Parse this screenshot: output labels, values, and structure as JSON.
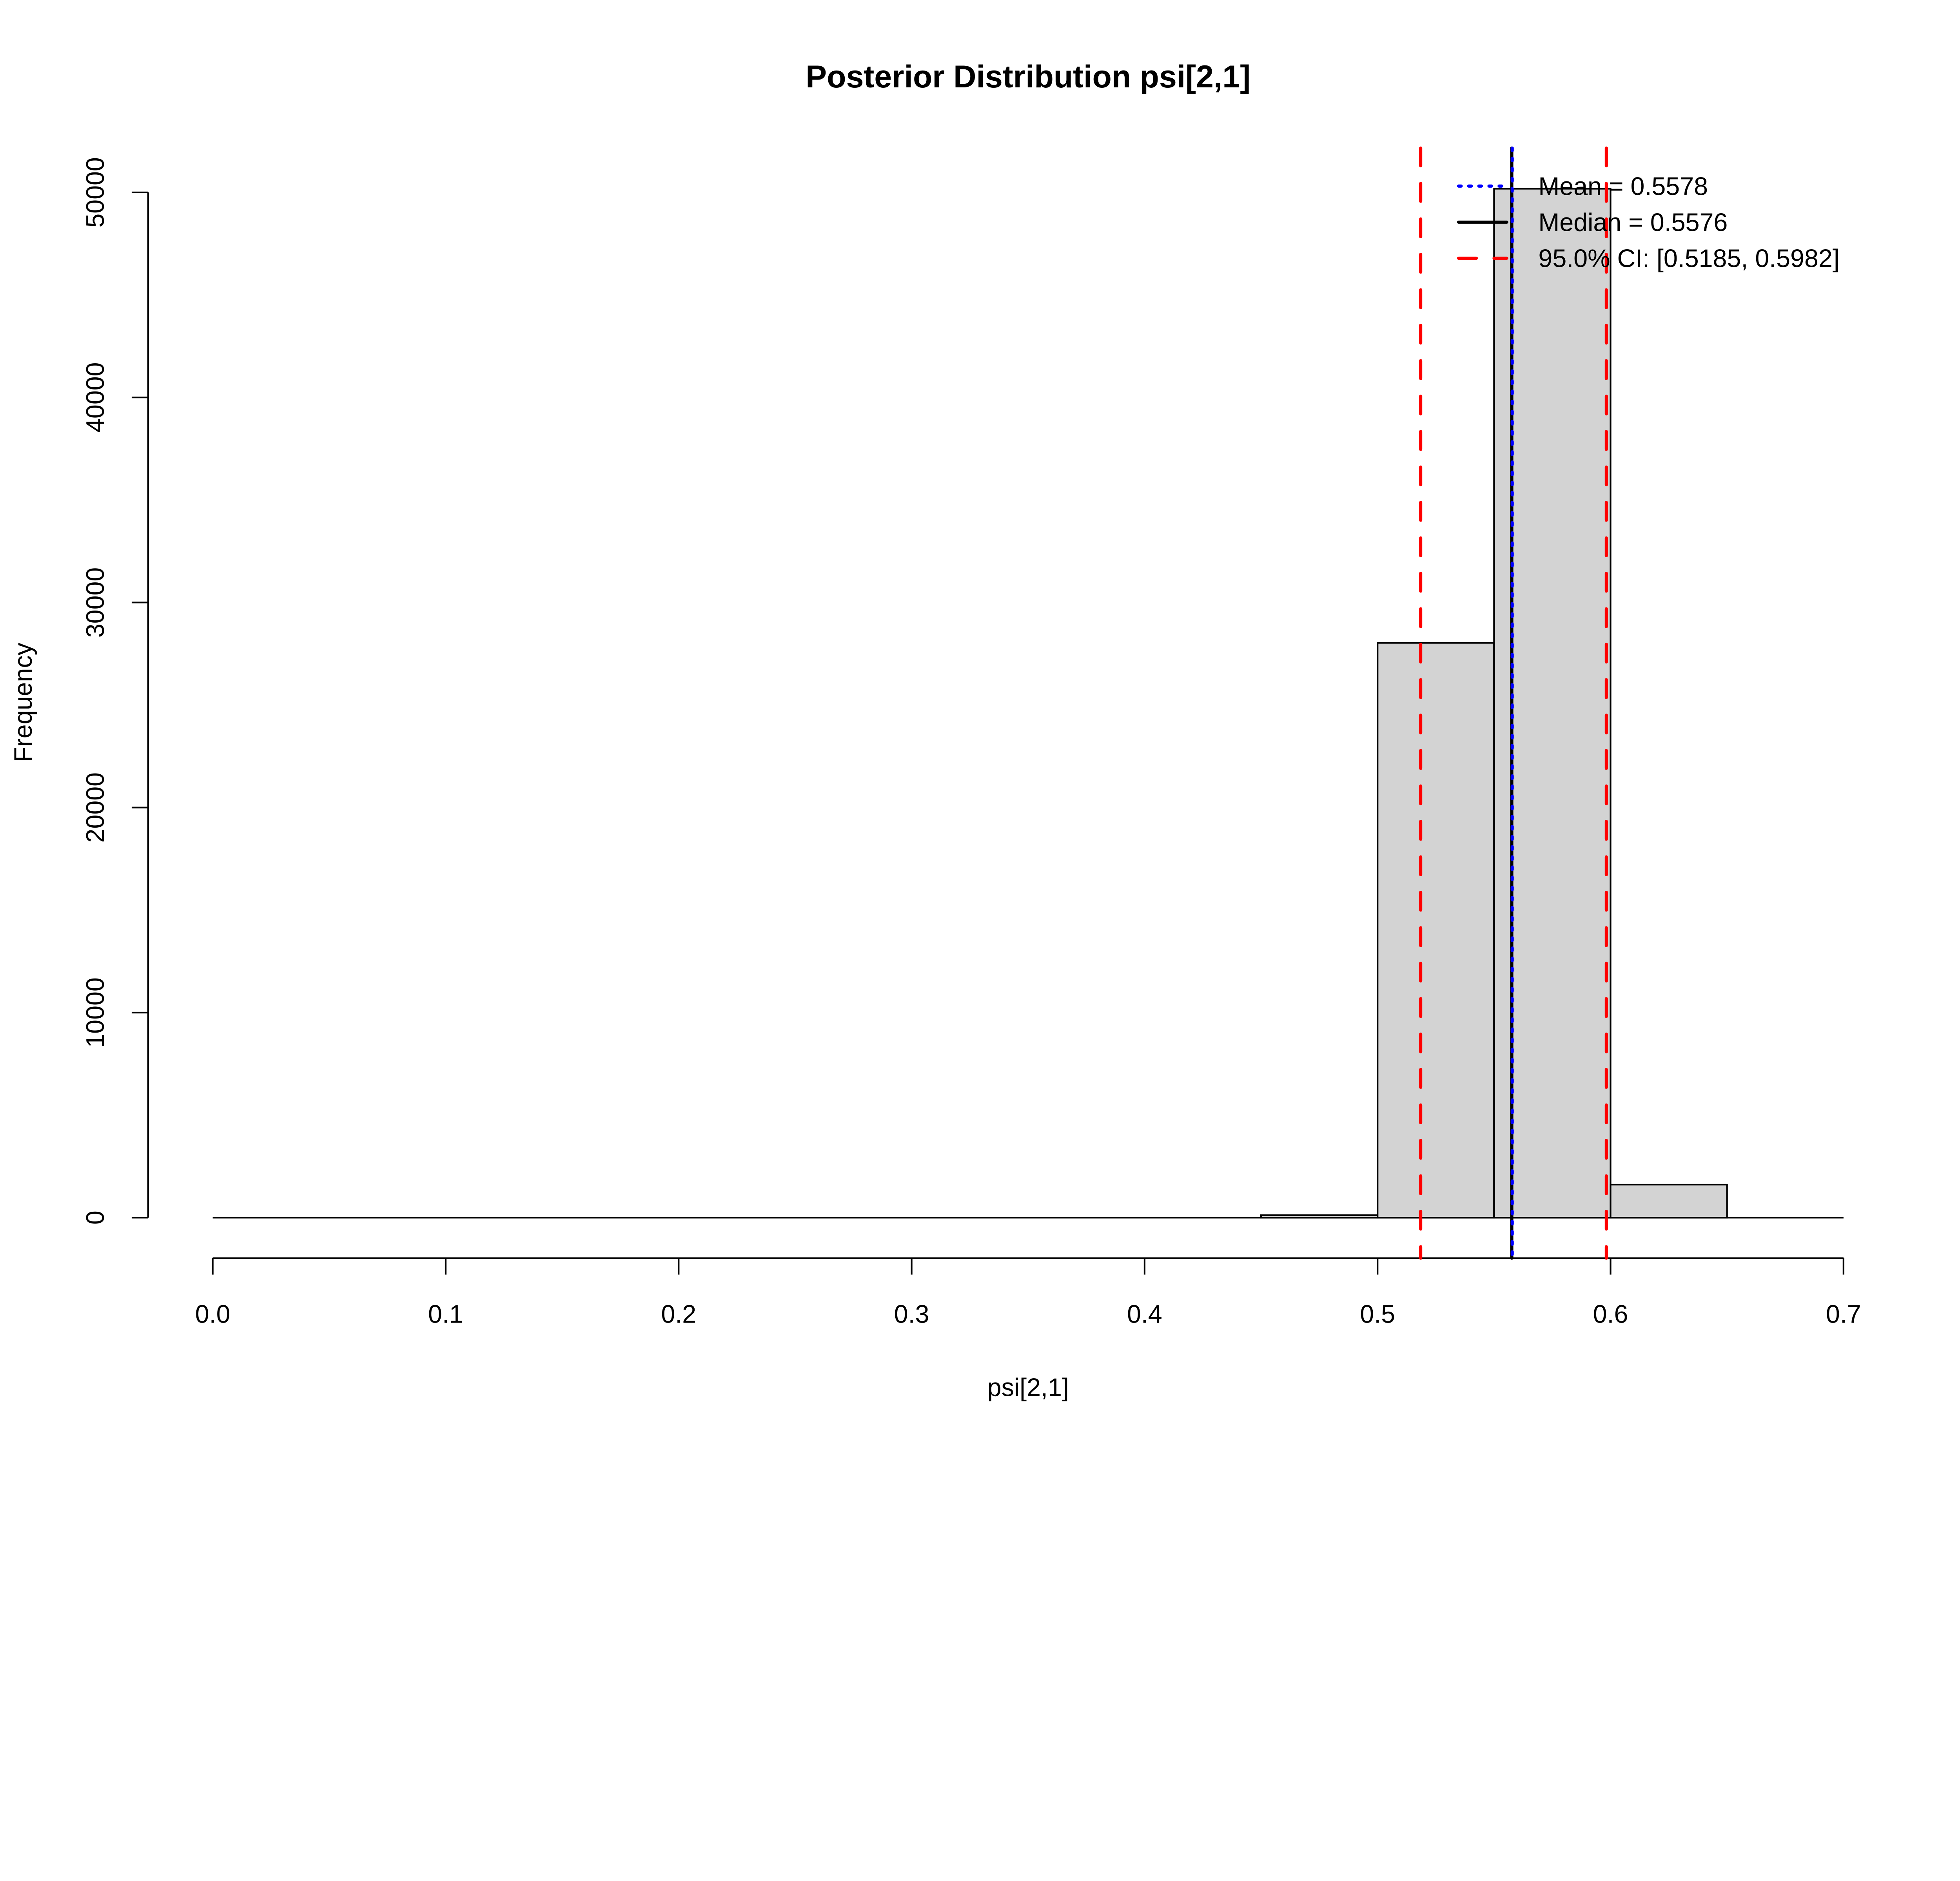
{
  "chart_data": {
    "type": "bar",
    "title": "Posterior Distribution psi[2,1]",
    "xlabel": "psi[2,1]",
    "ylabel": "Frequency",
    "xlim": [
      0.0,
      0.7
    ],
    "ylim": [
      0,
      50000
    ],
    "xticks": [
      "0.0",
      "0.1",
      "0.2",
      "0.3",
      "0.4",
      "0.5",
      "0.6",
      "0.7"
    ],
    "yticks": [
      "0",
      "10000",
      "20000",
      "30000",
      "40000",
      "50000"
    ],
    "bins": [
      {
        "from": 0.45,
        "to": 0.5,
        "count": 120
      },
      {
        "from": 0.5,
        "to": 0.55,
        "count": 28030
      },
      {
        "from": 0.55,
        "to": 0.6,
        "count": 50180
      },
      {
        "from": 0.6,
        "to": 0.65,
        "count": 1610
      }
    ],
    "bar_color": "#d3d3d3",
    "lines": [
      {
        "name": "mean",
        "value": 0.5578,
        "color": "#0000ff",
        "style": "dotted"
      },
      {
        "name": "median",
        "value": 0.5576,
        "color": "#000000",
        "style": "solid"
      },
      {
        "name": "ci_low",
        "value": 0.5185,
        "color": "#ff0000",
        "style": "dashed"
      },
      {
        "name": "ci_high",
        "value": 0.5982,
        "color": "#ff0000",
        "style": "dashed"
      }
    ],
    "legend": {
      "position": "top-right",
      "entries": [
        {
          "label": "Mean = 0.5578",
          "color": "#0000ff",
          "style": "dotted"
        },
        {
          "label": "Median = 0.5576",
          "color": "#000000",
          "style": "solid"
        },
        {
          "label": "95.0% CI: [0.5185, 0.5982]",
          "color": "#ff0000",
          "style": "dashed"
        }
      ]
    },
    "grid": false
  }
}
